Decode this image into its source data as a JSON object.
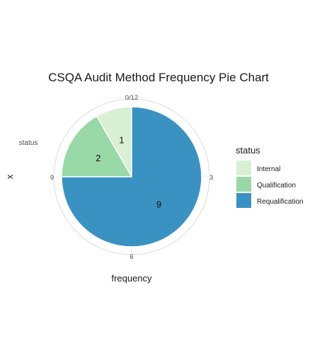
{
  "chart_data": {
    "type": "pie",
    "title": "CSQA Audit Method Frequency Pie Chart",
    "xlabel": "frequency",
    "ylabel": "x",
    "y_category_label": "status",
    "categories": [
      "Internal",
      "Qualification",
      "Requalification"
    ],
    "values": [
      1,
      2,
      9
    ],
    "colors": [
      "#d9f0d3",
      "#99d8a7",
      "#3a92c3"
    ],
    "total": 12,
    "theta_ticks": [
      "0/12",
      "3",
      "6",
      "9"
    ],
    "legend": {
      "title": "status",
      "position": "right",
      "entries": [
        "Internal",
        "Qualification",
        "Requalification"
      ]
    },
    "grid": true
  }
}
